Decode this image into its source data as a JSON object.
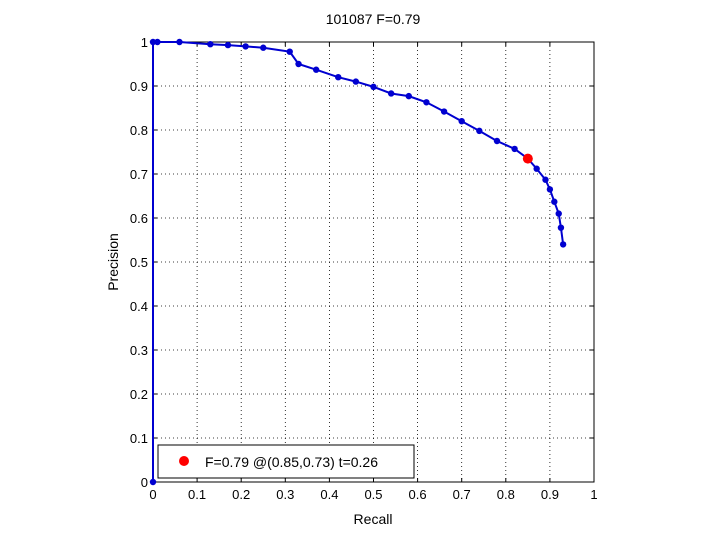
{
  "chart_data": {
    "type": "line",
    "title": "101087 F=0.79",
    "xlabel": "Recall",
    "ylabel": "Precision",
    "xlim": [
      0,
      1
    ],
    "ylim": [
      0,
      1
    ],
    "xticks": [
      "0",
      "0.1",
      "0.2",
      "0.3",
      "0.4",
      "0.5",
      "0.6",
      "0.7",
      "0.8",
      "0.9",
      "1"
    ],
    "yticks": [
      "0",
      "0.1",
      "0.2",
      "0.3",
      "0.4",
      "0.5",
      "0.6",
      "0.7",
      "0.8",
      "0.9",
      "1"
    ],
    "grid": true,
    "legend_position": "bottom-left",
    "series": [
      {
        "color": "#0000d0",
        "x": [
          0,
          0,
          0.01,
          0.06,
          0.13,
          0.17,
          0.21,
          0.25,
          0.31,
          0.33,
          0.37,
          0.42,
          0.46,
          0.5,
          0.54,
          0.58,
          0.62,
          0.66,
          0.7,
          0.74,
          0.78,
          0.82,
          0.85,
          0.87,
          0.89,
          0.9,
          0.91,
          0.92,
          0.925,
          0.93
        ],
        "y": [
          0,
          1,
          1,
          1,
          0.995,
          0.993,
          0.99,
          0.987,
          0.978,
          0.95,
          0.937,
          0.92,
          0.91,
          0.898,
          0.883,
          0.877,
          0.863,
          0.842,
          0.82,
          0.798,
          0.775,
          0.757,
          0.735,
          0.712,
          0.687,
          0.665,
          0.637,
          0.61,
          0.578,
          0.54
        ]
      }
    ],
    "highlight": {
      "label": "F=0.79 @(0.85,0.73) t=0.26",
      "x": 0.85,
      "y": 0.735,
      "color": "#ff0000"
    }
  }
}
